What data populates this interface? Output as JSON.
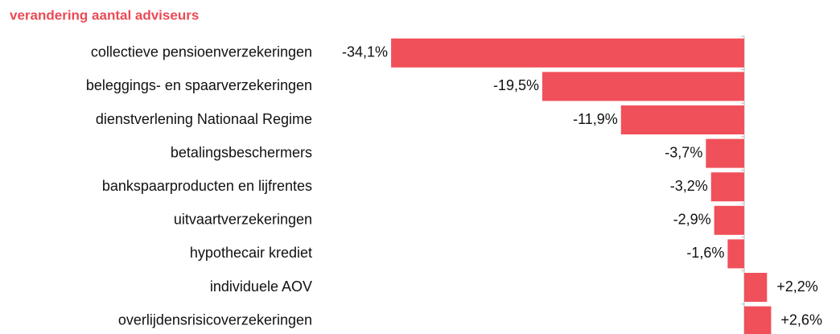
{
  "chart_data": {
    "type": "bar",
    "orientation": "horizontal",
    "title": "verandering aantal adviseurs",
    "categories": [
      "collectieve pensioenverzekeringen",
      "beleggings- en spaarverzekeringen",
      "dienstverlening Nationaal Regime",
      "betalingsbeschermers",
      "bankspaarproducten en lijfrentes",
      "uitvaartverzekeringen",
      "hypothecair krediet",
      "individuele AOV",
      "overlijdensrisicoverzekeringen"
    ],
    "values": [
      -34.1,
      -19.5,
      -11.9,
      -3.7,
      -3.2,
      -2.9,
      -1.6,
      2.2,
      2.6
    ],
    "value_labels": [
      "-34,1%",
      "-19,5%",
      "-11,9%",
      "-3,7%",
      "-3,2%",
      "-2,9%",
      "-1,6%",
      "+2,2%",
      "+2,6%"
    ],
    "color": "#f0505a",
    "xlim": [
      -35,
      5
    ]
  }
}
